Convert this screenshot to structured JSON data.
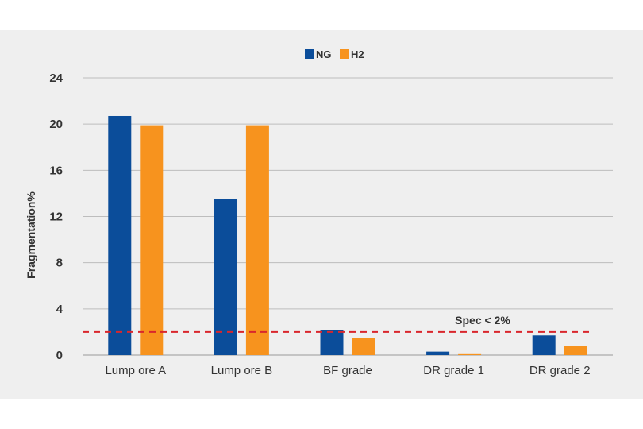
{
  "chart_data": {
    "type": "bar",
    "title": "",
    "xlabel": "",
    "ylabel": "Fragmentation%",
    "ylim": [
      0,
      24
    ],
    "yticks": [
      0,
      4,
      8,
      12,
      16,
      20,
      24
    ],
    "grid": true,
    "legend_position": "top-center",
    "categories": [
      "Lump ore A",
      "Lump ore B",
      "BF grade",
      "DR grade 1",
      "DR grade 2"
    ],
    "series": [
      {
        "name": "NG",
        "color": "#0b4d9a",
        "values": [
          20.7,
          13.5,
          2.2,
          0.3,
          1.7
        ]
      },
      {
        "name": "H2",
        "color": "#f7931e",
        "values": [
          19.9,
          19.9,
          1.5,
          0.15,
          0.8
        ]
      }
    ],
    "reference_line": {
      "value": 2,
      "label": "Spec < 2%",
      "color": "#d9262c",
      "style": "dashed"
    }
  }
}
